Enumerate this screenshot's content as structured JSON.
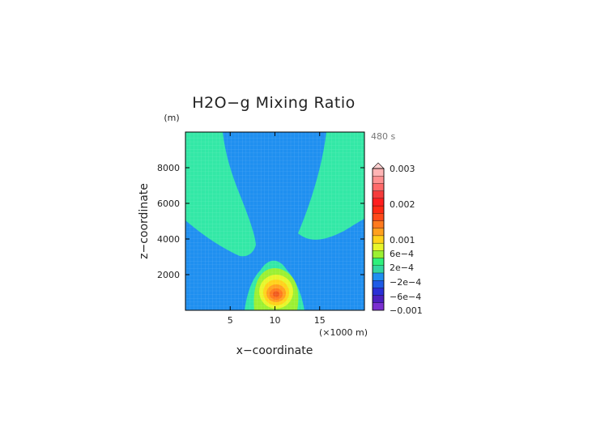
{
  "chart_data": {
    "type": "heatmap",
    "title": "H2O−g Mixing Ratio",
    "xlabel": "x−coordinate",
    "ylabel": "z−coordinate",
    "x_unit": "(×1000 m)",
    "y_unit": "(m)",
    "time_label": "480 s",
    "xlim": [
      0,
      20
    ],
    "ylim": [
      0,
      10000
    ],
    "x_ticks": [
      {
        "value": 5,
        "label": "5"
      },
      {
        "value": 10,
        "label": "10"
      },
      {
        "value": 15,
        "label": "15"
      }
    ],
    "y_ticks": [
      {
        "value": 2000,
        "label": "2000"
      },
      {
        "value": 4000,
        "label": "4000"
      },
      {
        "value": 6000,
        "label": "6000"
      },
      {
        "value": 8000,
        "label": "8000"
      }
    ],
    "colorbar": {
      "max_label": "0.003",
      "labels": [
        "0.003",
        "0.002",
        "0.001",
        "6e−4",
        "2e−4",
        "−2e−4",
        "−6e−4",
        "−0.001"
      ],
      "bins": [
        {
          "label": "-0.001",
          "color": "#7a2fd0"
        },
        {
          "label": "",
          "color": "#4b1fbf"
        },
        {
          "label": "-6e-4",
          "color": "#2a2fd6"
        },
        {
          "label": "",
          "color": "#1e5be6"
        },
        {
          "label": "-2e-4",
          "color": "#1f8ff0"
        },
        {
          "label": "",
          "color": "#33d6a0"
        },
        {
          "label": "2e-4",
          "color": "#2ef07c"
        },
        {
          "label": "",
          "color": "#9bf032"
        },
        {
          "label": "6e-4",
          "color": "#e8f52a"
        },
        {
          "label": "",
          "color": "#ffd21a"
        },
        {
          "label": "0.001",
          "color": "#ffa01e"
        },
        {
          "label": "",
          "color": "#ff7a1e"
        },
        {
          "label": "",
          "color": "#ff4a1a"
        },
        {
          "label": "",
          "color": "#ff2a14"
        },
        {
          "label": "0.002",
          "color": "#ff1e1e"
        },
        {
          "label": "",
          "color": "#f53b3b"
        },
        {
          "label": "",
          "color": "#ff6a6a"
        },
        {
          "label": "",
          "color": "#ff9090"
        },
        {
          "label": "0.003",
          "color": "#ffb4b4"
        }
      ]
    },
    "regions": [
      {
        "name": "background-positive",
        "color": "#33e8a6"
      },
      {
        "name": "v-shaped-negative",
        "color": "#1f8ff0"
      },
      {
        "name": "bubble-2e-4",
        "color": "#9bf032"
      },
      {
        "name": "bubble-4e-4",
        "color": "#e8f52a"
      },
      {
        "name": "bubble-6e-4",
        "color": "#ffd21a"
      },
      {
        "name": "bubble-8e-4",
        "color": "#ffa01e"
      },
      {
        "name": "bubble-core",
        "color": "#ff7a1e"
      },
      {
        "name": "bubble-center",
        "color": "#f05a1e"
      }
    ]
  }
}
